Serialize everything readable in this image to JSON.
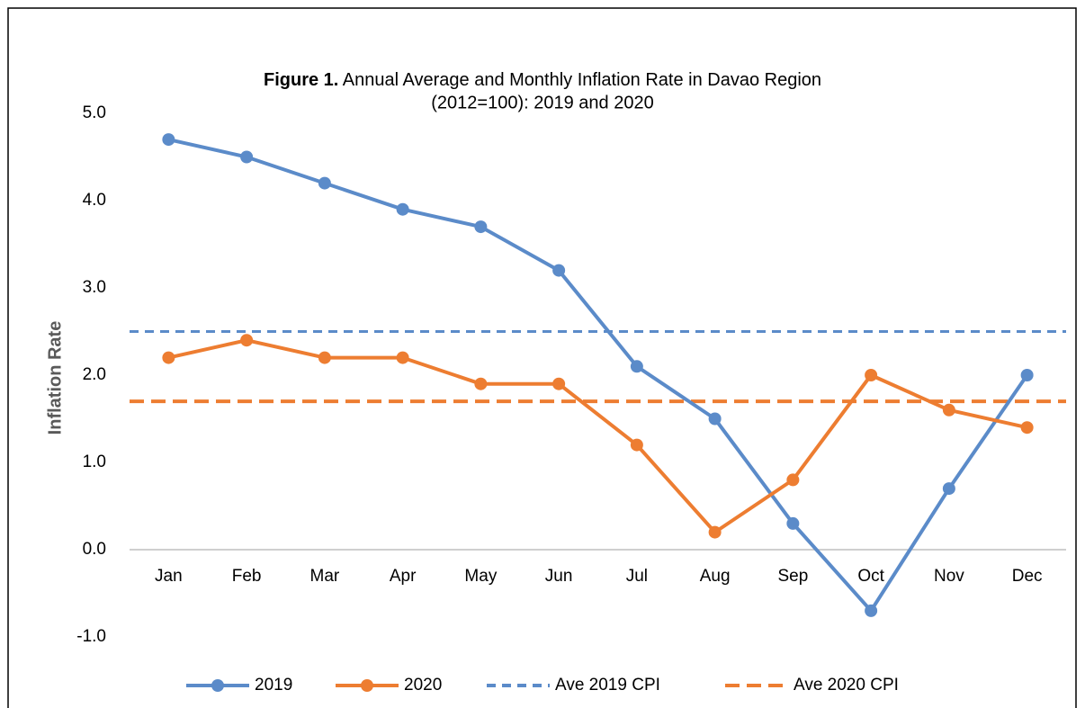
{
  "chart_data": {
    "type": "line",
    "title_prefix": "Figure 1.",
    "title": "Annual Average and Monthly Inflation Rate in Davao Region",
    "subtitle": "(2012=100): 2019 and 2020",
    "y_label": "Inflation Rate",
    "categories": [
      "Jan",
      "Feb",
      "Mar",
      "Apr",
      "May",
      "Jun",
      "Jul",
      "Aug",
      "Sep",
      "Oct",
      "Nov",
      "Dec"
    ],
    "series": [
      {
        "name": "2019",
        "color": "#5b8bc9",
        "values": [
          4.7,
          4.5,
          4.2,
          3.9,
          3.7,
          3.2,
          2.1,
          1.5,
          0.3,
          -0.7,
          0.7,
          2.0
        ]
      },
      {
        "name": "2020",
        "color": "#ed7d31",
        "values": [
          2.2,
          2.4,
          2.2,
          2.2,
          1.9,
          1.9,
          1.2,
          0.2,
          0.8,
          2.0,
          1.6,
          1.4
        ]
      }
    ],
    "reference_lines": [
      {
        "name": "Ave 2019 CPI",
        "color": "#5b8bc9",
        "value": 2.5
      },
      {
        "name": "Ave 2020 CPI",
        "color": "#ed7d31",
        "value": 1.7
      }
    ],
    "ylim": [
      -1,
      5
    ],
    "yticks": [
      {
        "value": -1,
        "label": "-1.0"
      },
      {
        "value": 0,
        "label": "0.0"
      },
      {
        "value": 1,
        "label": "1.0"
      },
      {
        "value": 2,
        "label": "2.0"
      },
      {
        "value": 3,
        "label": "3.0"
      },
      {
        "value": 4,
        "label": "4.0"
      },
      {
        "value": 5,
        "label": "5.0"
      }
    ],
    "grid": false,
    "legend": "bottom"
  }
}
